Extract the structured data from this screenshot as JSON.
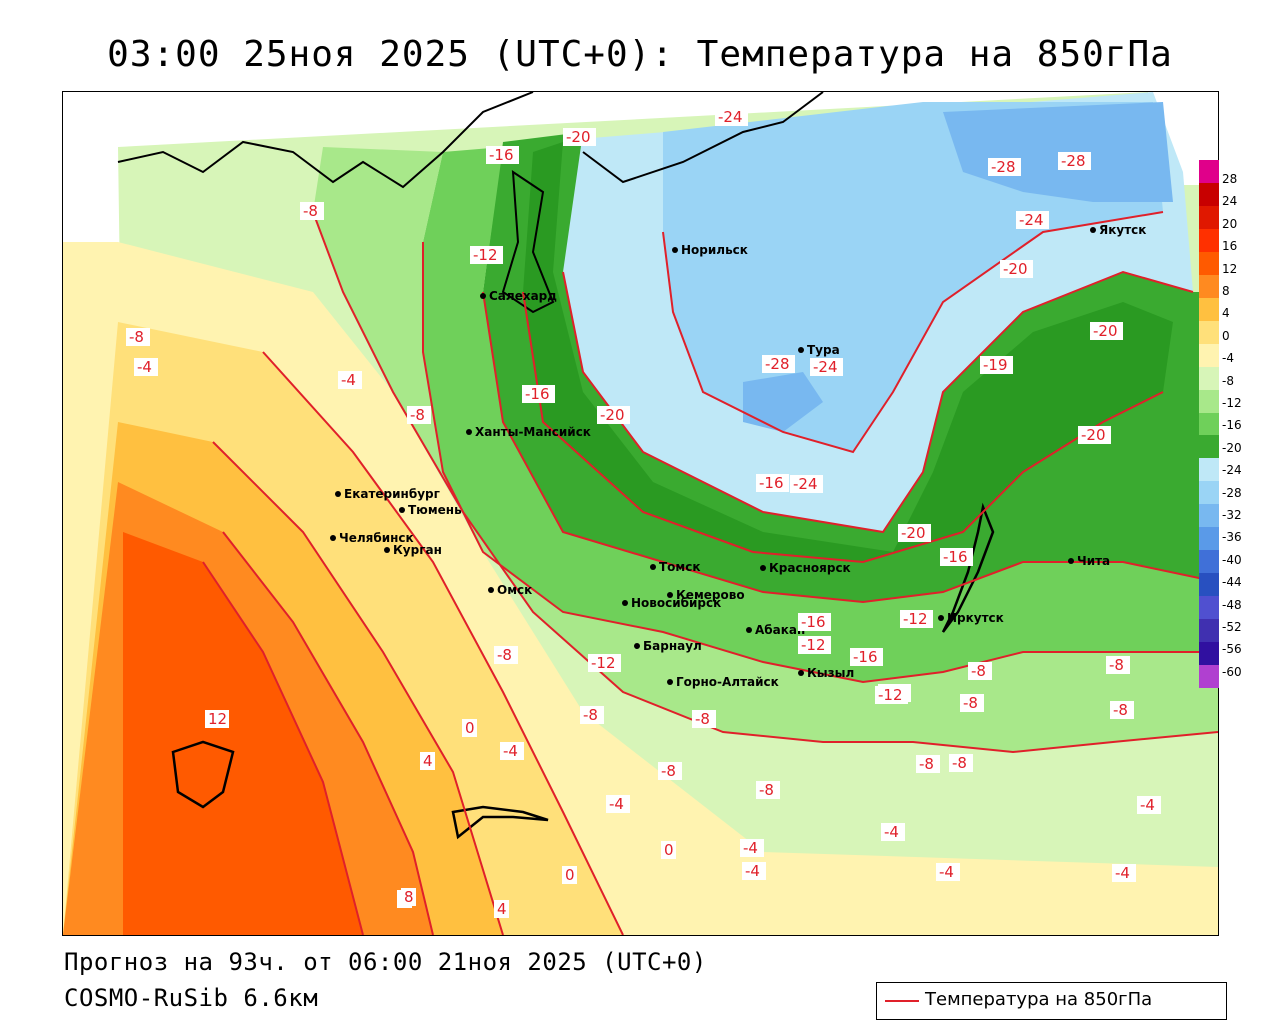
{
  "title": "03:00 25ноя 2025 (UTC+0): Температура на 850гПа",
  "forecast_line": "Прогноз на 93ч. от 06:00 21ноя 2025 (UTC+0)",
  "model_line": "COSMO-RuSib 6.6км",
  "legend": {
    "label": "Температура на 850гПа",
    "line_color": "#e0202a"
  },
  "colorbar": {
    "labels": [
      "28",
      "24",
      "20",
      "16",
      "12",
      "8",
      "4",
      "0",
      "-4",
      "-8",
      "-12",
      "-16",
      "-20",
      "-24",
      "-28",
      "-32",
      "-36",
      "-40",
      "-44",
      "-48",
      "-52",
      "-56",
      "-60"
    ],
    "colors": [
      "#e0008a",
      "#c80000",
      "#e01800",
      "#ff3000",
      "#ff5a00",
      "#ff8a20",
      "#ffc040",
      "#ffe07a",
      "#fff3b0",
      "#d7f5b8",
      "#a8e88a",
      "#6fd05a",
      "#3aaa30",
      "#bfe8f7",
      "#9ad4f5",
      "#78b8f0",
      "#5a9ae8",
      "#4070d8",
      "#2850c0",
      "#5050d0",
      "#4030b0",
      "#3010a0",
      "#b040d0"
    ]
  },
  "cities": [
    {
      "name": "Норильск"
    },
    {
      "name": "Якутск"
    },
    {
      "name": "Салехард"
    },
    {
      "name": "Тура"
    },
    {
      "name": "Ханты-Мансийск"
    },
    {
      "name": "Екатеринбург"
    },
    {
      "name": "Тюмень"
    },
    {
      "name": "Челябинск"
    },
    {
      "name": "Курган"
    },
    {
      "name": "Омск"
    },
    {
      "name": "Томск"
    },
    {
      "name": "Новосибирск"
    },
    {
      "name": "Кемерово"
    },
    {
      "name": "Красноярск"
    },
    {
      "name": "Абакан"
    },
    {
      "name": "Иркутск"
    },
    {
      "name": "Барнаул"
    },
    {
      "name": "Горно-Алтайск"
    },
    {
      "name": "Кызыл"
    },
    {
      "name": "Чита"
    }
  ],
  "isoline_labels": [
    "-20",
    "-24",
    "-28",
    "-28",
    "-16",
    "-8",
    "-12",
    "-24",
    "-20",
    "-20",
    "-8",
    "-4",
    "-16",
    "-20",
    "-28",
    "-24",
    "-19",
    "-20",
    "-8",
    "-16",
    "-24",
    "-20",
    "-16",
    "-4",
    "-8",
    "-12",
    "-16",
    "-12",
    "-12",
    "-16",
    "-12",
    "-8",
    "-8",
    "-8",
    "-8",
    "12",
    "8",
    "4",
    "0",
    "-4",
    "-8",
    "-4",
    "-8",
    "-4",
    "-4",
    "-4",
    "-4",
    "-4",
    "0",
    "0",
    "-4",
    "8",
    "4",
    "-8",
    "-8",
    "-12",
    "-8",
    "-8"
  ]
}
